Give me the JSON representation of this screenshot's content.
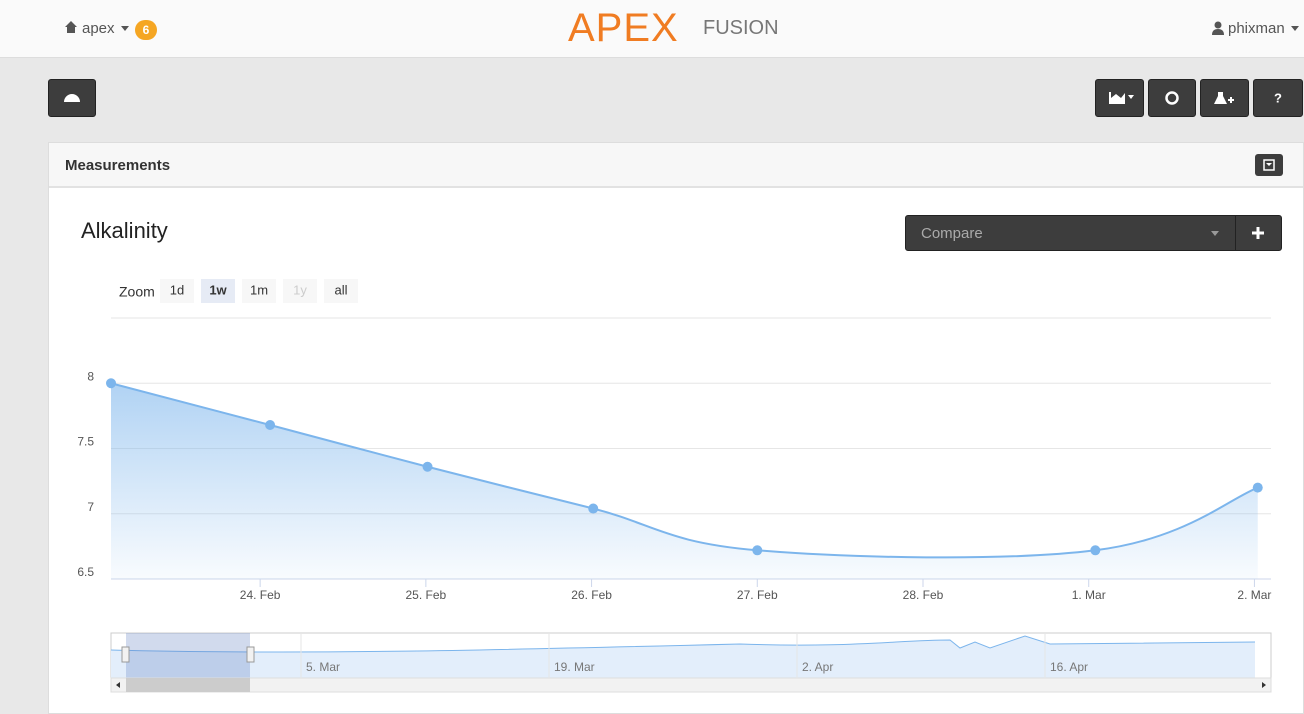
{
  "header": {
    "site": "apex",
    "badge": "6",
    "logo_main": "APEX",
    "logo_sub": "FUSION",
    "user": "phixman"
  },
  "panel": {
    "title": "Measurements"
  },
  "chart_data": {
    "type": "area",
    "title": "Alkalinity",
    "compare_placeholder": "Compare",
    "zoom_label": "Zoom",
    "zoom_buttons": [
      "1d",
      "1w",
      "1m",
      "1y",
      "all"
    ],
    "color": "#7cb5ec",
    "x": [
      23.1,
      24.06,
      25.01,
      26.01,
      27.0,
      29.04,
      30.02
    ],
    "values": [
      8.0,
      7.68,
      7.36,
      7.04,
      6.72,
      6.72,
      7.2
    ],
    "xlim": [
      23.1,
      30.1
    ],
    "xticks": [
      {
        "value": 24,
        "label": "24. Feb"
      },
      {
        "value": 25,
        "label": "25. Feb"
      },
      {
        "value": 26,
        "label": "26. Feb"
      },
      {
        "value": 27,
        "label": "27. Feb"
      },
      {
        "value": 28,
        "label": "28. Feb"
      },
      {
        "value": 29,
        "label": "1. Mar"
      },
      {
        "value": 30,
        "label": "2. Mar"
      }
    ],
    "ylim": [
      6.5,
      8.5
    ],
    "yticks": [
      6.5,
      7,
      7.5,
      8
    ],
    "grid": true,
    "navigator_labels": [
      "5. Mar",
      "19. Mar",
      "2. Apr",
      "16. Apr"
    ]
  }
}
